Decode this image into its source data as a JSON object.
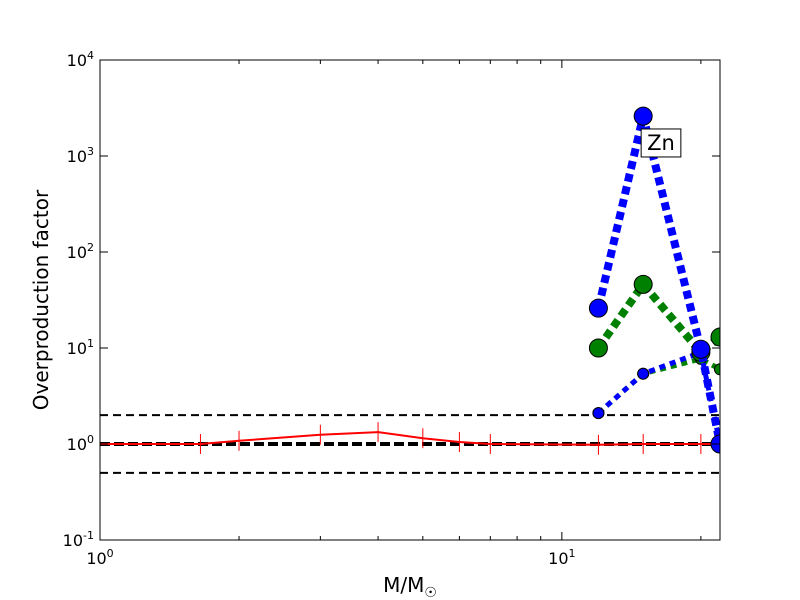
{
  "chart_data": {
    "type": "scatter",
    "xscale": "log",
    "yscale": "log",
    "xlim": [
      1,
      22
    ],
    "ylim": [
      0.1,
      10000
    ],
    "xlabel": "M/M☉",
    "ylabel": "Overproduction factor",
    "grid": false,
    "x_ticks": [
      {
        "value": 1,
        "base": "10",
        "exp": "0"
      },
      {
        "value": 10,
        "base": "10",
        "exp": "1"
      }
    ],
    "y_ticks": [
      {
        "value": 0.1,
        "base": "10",
        "exp": "-1"
      },
      {
        "value": 1,
        "base": "10",
        "exp": "0"
      },
      {
        "value": 10,
        "base": "10",
        "exp": "1"
      },
      {
        "value": 100,
        "base": "10",
        "exp": "2"
      },
      {
        "value": 1000,
        "base": "10",
        "exp": "3"
      },
      {
        "value": 10000,
        "base": "10",
        "exp": "4"
      }
    ],
    "reference_lines": [
      {
        "y": 2.0,
        "color": "#000000",
        "style": "dashed",
        "weight": "normal"
      },
      {
        "y": 1.0,
        "color": "#000000",
        "style": "dashed",
        "weight": "bold"
      },
      {
        "y": 0.5,
        "color": "#000000",
        "style": "dashed",
        "weight": "normal"
      }
    ],
    "series": [
      {
        "color": "#ff0000",
        "style": "solid",
        "marker": "vline",
        "x": [
          1.0,
          1.65,
          2.0,
          3.0,
          4.0,
          5.0,
          6.0,
          7.0,
          12.0,
          15.0,
          20.0,
          22.0
        ],
        "y": [
          1.0,
          1.0,
          1.08,
          1.25,
          1.33,
          1.15,
          1.05,
          1.0,
          0.98,
          1.0,
          1.0,
          1.0
        ]
      },
      {
        "color": "#0000ff",
        "style": "dotted",
        "weight": "heavy",
        "marker": "circle-large",
        "x": [
          12,
          15,
          20,
          22
        ],
        "y": [
          26,
          2600,
          9.7,
          1.0
        ]
      },
      {
        "color": "#008000",
        "style": "dotted",
        "weight": "heavy",
        "marker": "circle-large",
        "x": [
          12,
          15,
          20,
          22
        ],
        "y": [
          10,
          46,
          9.0,
          13
        ]
      },
      {
        "color": "#0000ff",
        "style": "dotted",
        "weight": "medium",
        "marker": "circle-small",
        "x": [
          12,
          15,
          20,
          22
        ],
        "y": [
          2.1,
          5.4,
          9.0,
          1.0
        ]
      },
      {
        "color": "#008000",
        "style": "dotted",
        "weight": "medium",
        "marker": "circle-small",
        "x": [
          12,
          15,
          20,
          22
        ],
        "y": [
          2.1,
          5.4,
          7.7,
          6.0
        ]
      }
    ],
    "annotations": [
      {
        "text": "Zn",
        "x": 15.3,
        "y": 1400
      }
    ]
  }
}
